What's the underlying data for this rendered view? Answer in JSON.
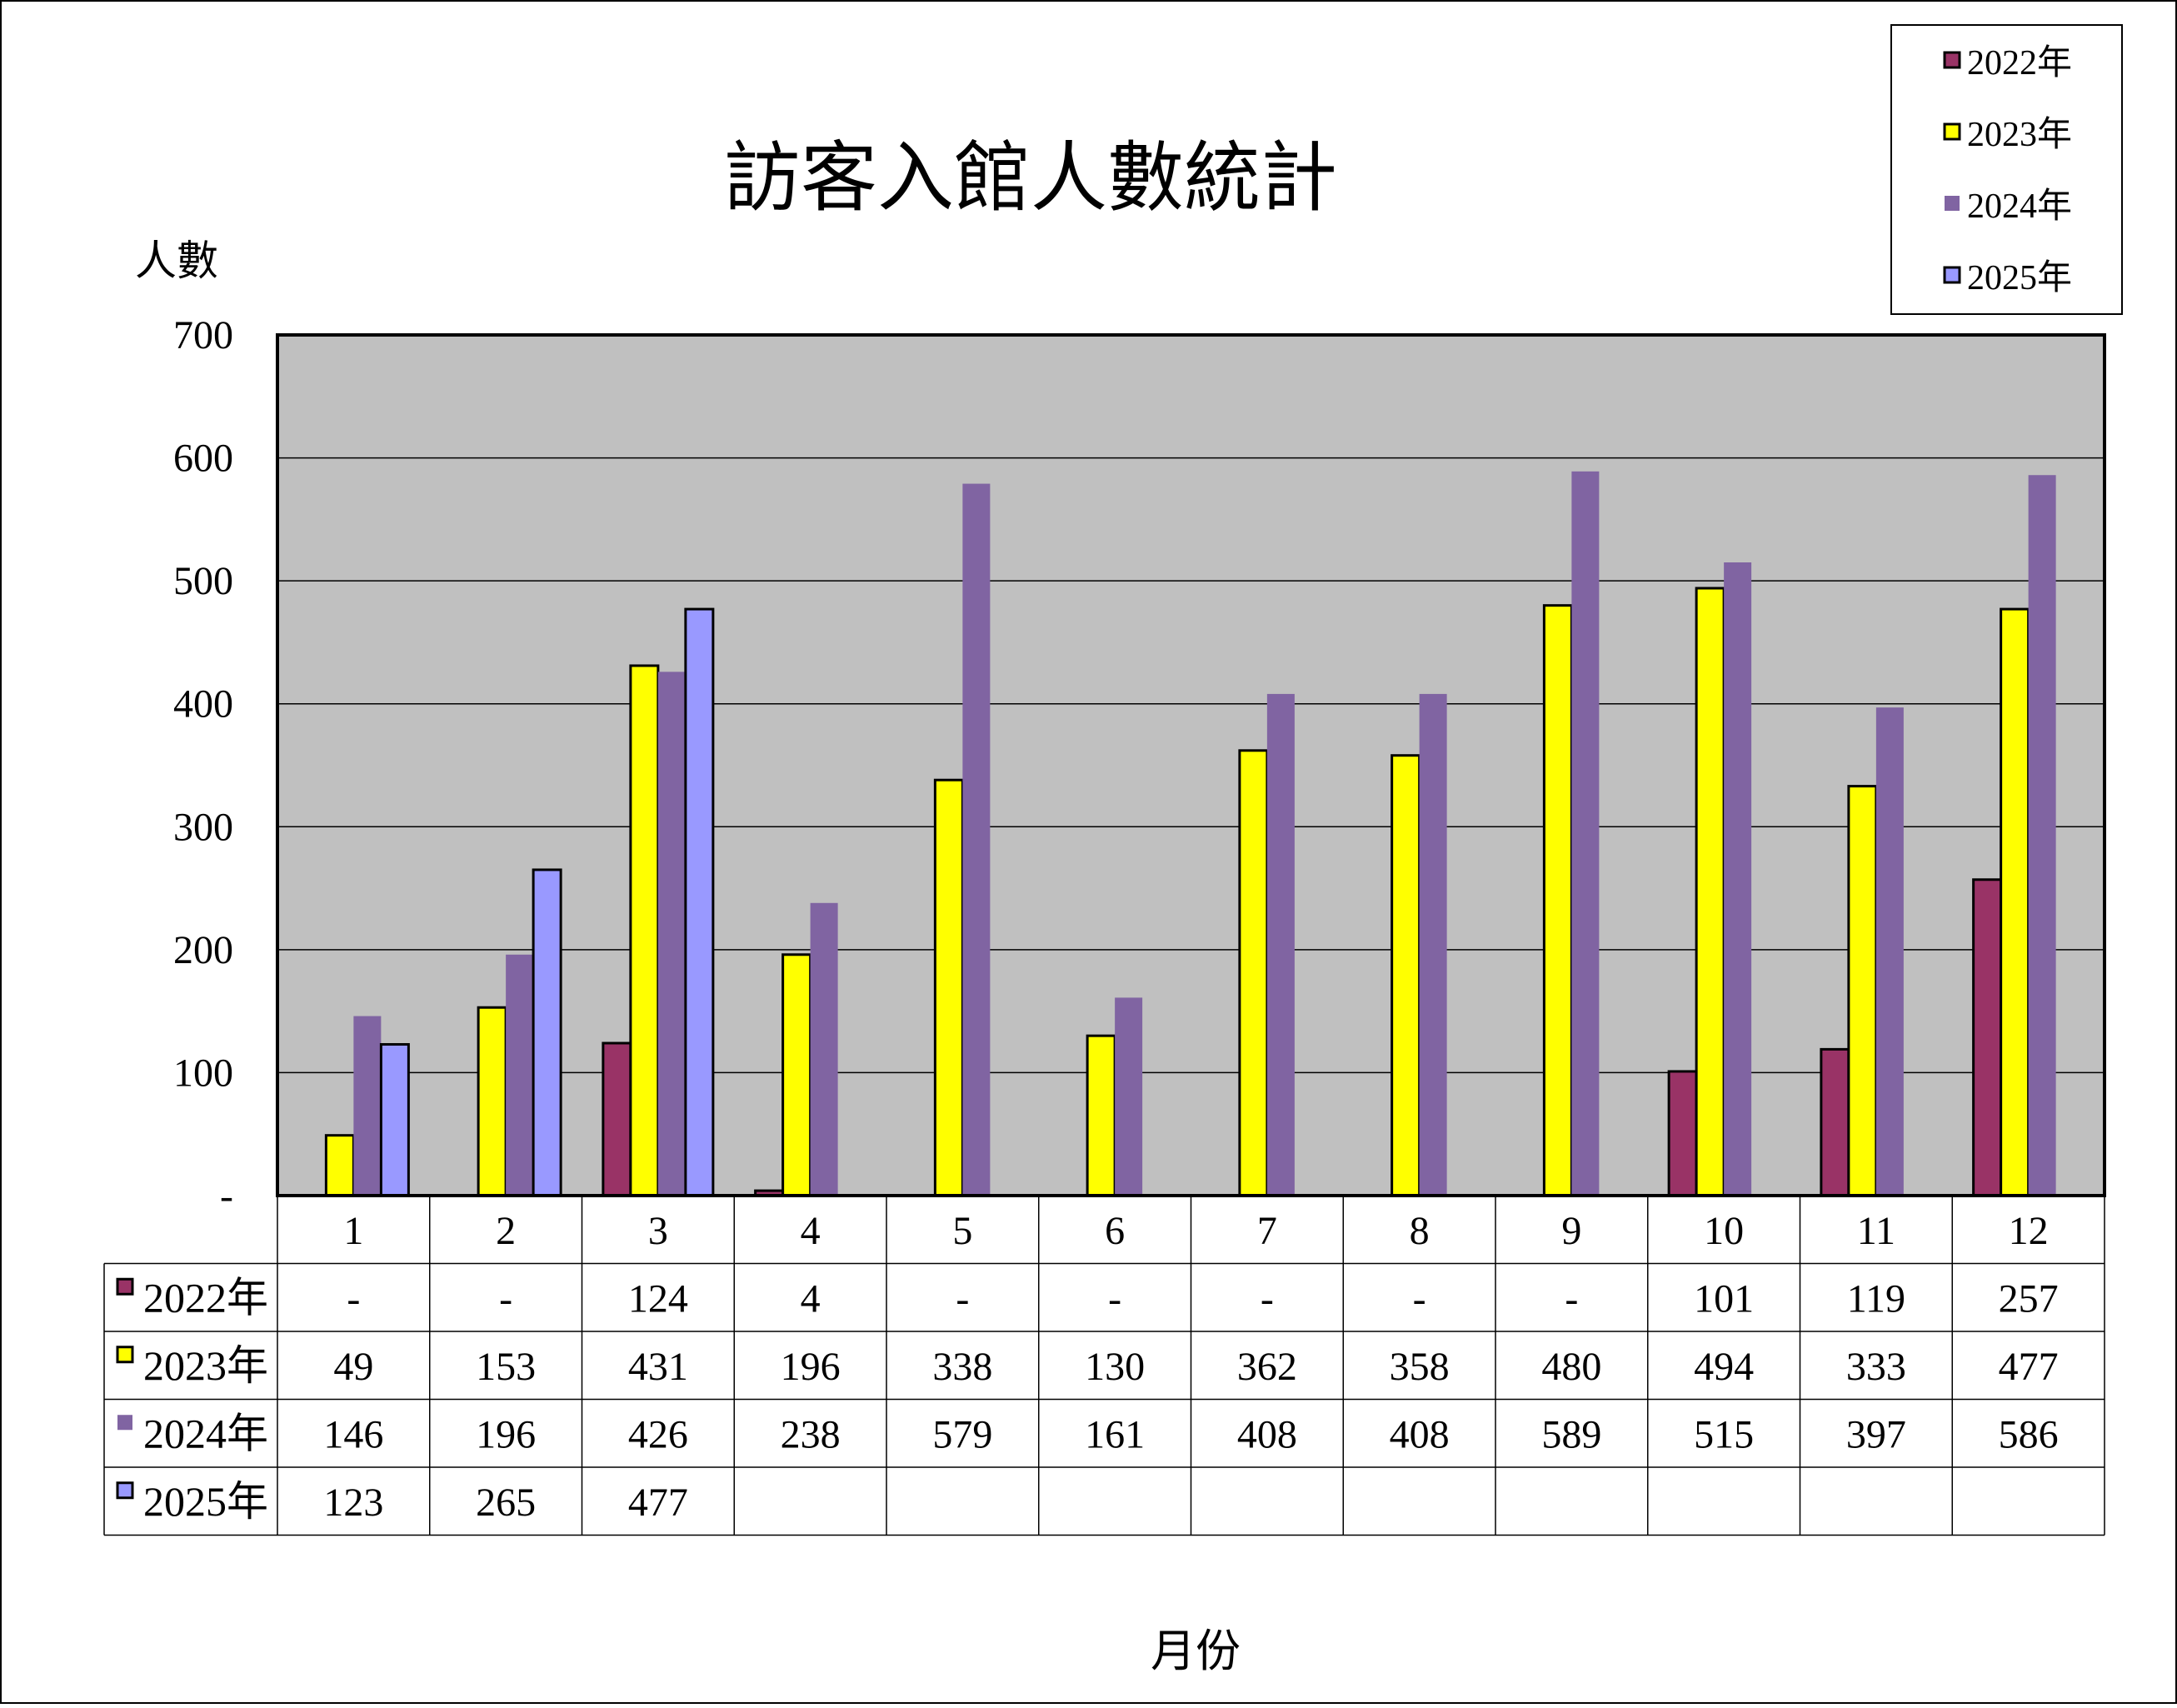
{
  "chart_data": {
    "type": "bar",
    "title": "訪客入館人數統計",
    "ylabel": "人數",
    "xlabel": "月份",
    "ylim": [
      0,
      700
    ],
    "yticks": [
      0,
      100,
      200,
      300,
      400,
      500,
      600,
      700
    ],
    "ytick_labels": [
      "-",
      "100",
      "200",
      "300",
      "400",
      "500",
      "600",
      "700"
    ],
    "categories": [
      "1",
      "2",
      "3",
      "4",
      "5",
      "6",
      "7",
      "8",
      "9",
      "10",
      "11",
      "12"
    ],
    "grid": true,
    "legend_position": "top-right",
    "data_table": true,
    "series": [
      {
        "name": "2022年",
        "color": "#993366",
        "values": [
          null,
          null,
          124,
          4,
          null,
          null,
          null,
          null,
          null,
          101,
          119,
          257
        ],
        "table_labels": [
          "-",
          "-",
          "124",
          "4",
          "-",
          "-",
          "-",
          "-",
          "-",
          "101",
          "119",
          "257"
        ]
      },
      {
        "name": "2023年",
        "color": "#FFFF00",
        "values": [
          49,
          153,
          431,
          196,
          338,
          130,
          362,
          358,
          480,
          494,
          333,
          477
        ],
        "table_labels": [
          "49",
          "153",
          "431",
          "196",
          "338",
          "130",
          "362",
          "358",
          "480",
          "494",
          "333",
          "477"
        ]
      },
      {
        "name": "2024年",
        "color": "#8064A2",
        "values": [
          146,
          196,
          426,
          238,
          579,
          161,
          408,
          408,
          589,
          515,
          397,
          586
        ],
        "table_labels": [
          "146",
          "196",
          "426",
          "238",
          "579",
          "161",
          "408",
          "408",
          "589",
          "515",
          "397",
          "586"
        ]
      },
      {
        "name": "2025年",
        "color": "#9999FF",
        "values": [
          123,
          265,
          477,
          null,
          null,
          null,
          null,
          null,
          null,
          null,
          null,
          null
        ],
        "table_labels": [
          "123",
          "265",
          "477",
          "",
          "",
          "",
          "",
          "",
          "",
          "",
          "",
          ""
        ]
      }
    ]
  }
}
